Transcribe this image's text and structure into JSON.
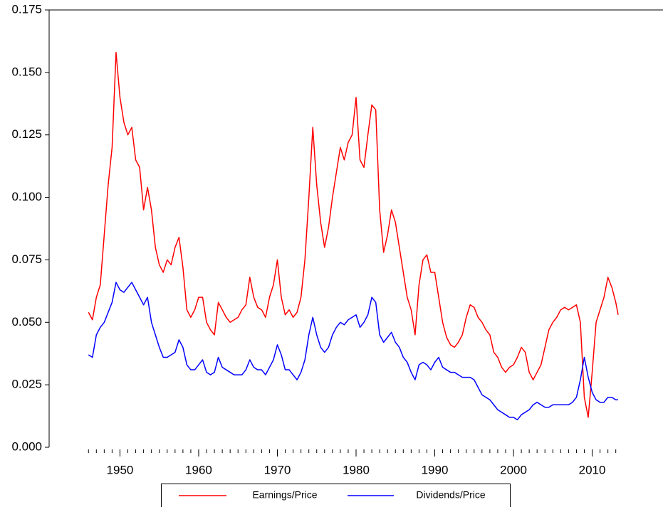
{
  "chart_data": {
    "type": "line",
    "x": [
      1946,
      1946.5,
      1947,
      1947.5,
      1948,
      1948.5,
      1949,
      1949.5,
      1950,
      1950.5,
      1951,
      1951.5,
      1952,
      1952.5,
      1953,
      1953.5,
      1954,
      1954.5,
      1955,
      1955.5,
      1956,
      1956.5,
      1957,
      1957.5,
      1958,
      1958.5,
      1959,
      1959.5,
      1960,
      1960.5,
      1961,
      1961.5,
      1962,
      1962.5,
      1963,
      1963.5,
      1964,
      1964.5,
      1965,
      1965.5,
      1966,
      1966.5,
      1967,
      1967.5,
      1968,
      1968.5,
      1969,
      1969.5,
      1970,
      1970.5,
      1971,
      1971.5,
      1972,
      1972.5,
      1973,
      1973.5,
      1974,
      1974.5,
      1975,
      1975.5,
      1976,
      1976.5,
      1977,
      1977.5,
      1978,
      1978.5,
      1979,
      1979.5,
      1980,
      1980.5,
      1981,
      1981.5,
      1982,
      1982.5,
      1983,
      1983.5,
      1984,
      1984.5,
      1985,
      1985.5,
      1986,
      1986.5,
      1987,
      1987.5,
      1988,
      1988.5,
      1989,
      1989.5,
      1990,
      1990.5,
      1991,
      1991.5,
      1992,
      1992.5,
      1993,
      1993.5,
      1994,
      1994.5,
      1995,
      1995.5,
      1996,
      1996.5,
      1997,
      1997.5,
      1998,
      1998.5,
      1999,
      1999.5,
      2000,
      2000.5,
      2001,
      2001.5,
      2002,
      2002.5,
      2003,
      2003.5,
      2004,
      2004.5,
      2005,
      2005.5,
      2006,
      2006.5,
      2007,
      2007.5,
      2008,
      2008.5,
      2009,
      2009.5,
      2010,
      2010.5,
      2011,
      2011.5,
      2012,
      2012.5,
      2013,
      2013.3
    ],
    "series": [
      {
        "name": "Earnings/Price",
        "color": "#ff0000",
        "values": [
          0.054,
          0.051,
          0.06,
          0.065,
          0.085,
          0.105,
          0.12,
          0.158,
          0.14,
          0.13,
          0.125,
          0.128,
          0.115,
          0.112,
          0.095,
          0.104,
          0.095,
          0.08,
          0.073,
          0.07,
          0.075,
          0.073,
          0.08,
          0.084,
          0.072,
          0.055,
          0.052,
          0.055,
          0.06,
          0.06,
          0.05,
          0.047,
          0.045,
          0.058,
          0.055,
          0.052,
          0.05,
          0.051,
          0.052,
          0.055,
          0.057,
          0.068,
          0.06,
          0.056,
          0.055,
          0.052,
          0.06,
          0.065,
          0.075,
          0.06,
          0.053,
          0.055,
          0.052,
          0.054,
          0.06,
          0.075,
          0.1,
          0.128,
          0.105,
          0.09,
          0.08,
          0.088,
          0.1,
          0.11,
          0.12,
          0.115,
          0.122,
          0.125,
          0.14,
          0.115,
          0.112,
          0.125,
          0.137,
          0.135,
          0.095,
          0.078,
          0.085,
          0.095,
          0.09,
          0.08,
          0.07,
          0.06,
          0.055,
          0.045,
          0.065,
          0.075,
          0.077,
          0.07,
          0.07,
          0.06,
          0.05,
          0.044,
          0.041,
          0.04,
          0.042,
          0.045,
          0.052,
          0.057,
          0.056,
          0.052,
          0.05,
          0.047,
          0.045,
          0.038,
          0.036,
          0.032,
          0.03,
          0.032,
          0.033,
          0.036,
          0.04,
          0.038,
          0.03,
          0.027,
          0.03,
          0.033,
          0.04,
          0.047,
          0.05,
          0.052,
          0.055,
          0.056,
          0.055,
          0.056,
          0.057,
          0.05,
          0.02,
          0.012,
          0.03,
          0.05,
          0.055,
          0.06,
          0.068,
          0.064,
          0.058,
          0.053
        ]
      },
      {
        "name": "Dividends/Price",
        "color": "#0000ff",
        "values": [
          0.037,
          0.036,
          0.045,
          0.048,
          0.05,
          0.054,
          0.058,
          0.066,
          0.063,
          0.062,
          0.064,
          0.066,
          0.063,
          0.06,
          0.057,
          0.06,
          0.05,
          0.045,
          0.04,
          0.036,
          0.036,
          0.037,
          0.038,
          0.043,
          0.04,
          0.033,
          0.031,
          0.031,
          0.033,
          0.035,
          0.03,
          0.029,
          0.03,
          0.036,
          0.032,
          0.031,
          0.03,
          0.029,
          0.029,
          0.029,
          0.031,
          0.035,
          0.032,
          0.031,
          0.031,
          0.029,
          0.032,
          0.035,
          0.041,
          0.037,
          0.031,
          0.031,
          0.029,
          0.027,
          0.03,
          0.035,
          0.045,
          0.052,
          0.045,
          0.04,
          0.038,
          0.04,
          0.045,
          0.048,
          0.05,
          0.049,
          0.051,
          0.052,
          0.053,
          0.048,
          0.05,
          0.053,
          0.06,
          0.058,
          0.045,
          0.042,
          0.044,
          0.046,
          0.042,
          0.04,
          0.036,
          0.034,
          0.03,
          0.027,
          0.033,
          0.034,
          0.033,
          0.031,
          0.034,
          0.036,
          0.032,
          0.031,
          0.03,
          0.03,
          0.029,
          0.028,
          0.028,
          0.028,
          0.027,
          0.024,
          0.021,
          0.02,
          0.019,
          0.017,
          0.015,
          0.014,
          0.013,
          0.012,
          0.012,
          0.011,
          0.013,
          0.014,
          0.015,
          0.017,
          0.018,
          0.017,
          0.016,
          0.016,
          0.017,
          0.017,
          0.017,
          0.017,
          0.017,
          0.018,
          0.02,
          0.027,
          0.036,
          0.028,
          0.022,
          0.019,
          0.018,
          0.018,
          0.02,
          0.02,
          0.019,
          0.019
        ]
      }
    ],
    "xlim": [
      1941,
      2019
    ],
    "xticks": [
      1950,
      1960,
      1970,
      1980,
      1990,
      2000,
      2010
    ],
    "xminorticks": [
      1946,
      1947,
      1948,
      1949,
      1950,
      1951,
      1952,
      1953,
      1954,
      1955,
      1956,
      1957,
      1958,
      1959,
      1960,
      1961,
      1962,
      1963,
      1964,
      1965,
      1966,
      1967,
      1968,
      1969,
      1970,
      1971,
      1972,
      1973,
      1974,
      1975,
      1976,
      1977,
      1978,
      1979,
      1980,
      1981,
      1982,
      1983,
      1984,
      1985,
      1986,
      1987,
      1988,
      1989,
      1990,
      1991,
      1992,
      1993,
      1994,
      1995,
      1996,
      1997,
      1998,
      1999,
      2000,
      2001,
      2002,
      2003,
      2004,
      2005,
      2006,
      2007,
      2008,
      2009,
      2010,
      2011,
      2012,
      2013
    ],
    "ylim": [
      0,
      0.175
    ],
    "yticks": [
      {
        "value": 0,
        "label": "0.000"
      },
      {
        "value": 0.025,
        "label": "0.025"
      },
      {
        "value": 0.05,
        "label": "0.050"
      },
      {
        "value": 0.075,
        "label": "0.075"
      },
      {
        "value": 0.1,
        "label": "0.100"
      },
      {
        "value": 0.125,
        "label": "0.125"
      },
      {
        "value": 0.15,
        "label": "0.150"
      },
      {
        "value": 0.175,
        "label": "0.175"
      }
    ],
    "grid": false,
    "legend": "bottom"
  }
}
